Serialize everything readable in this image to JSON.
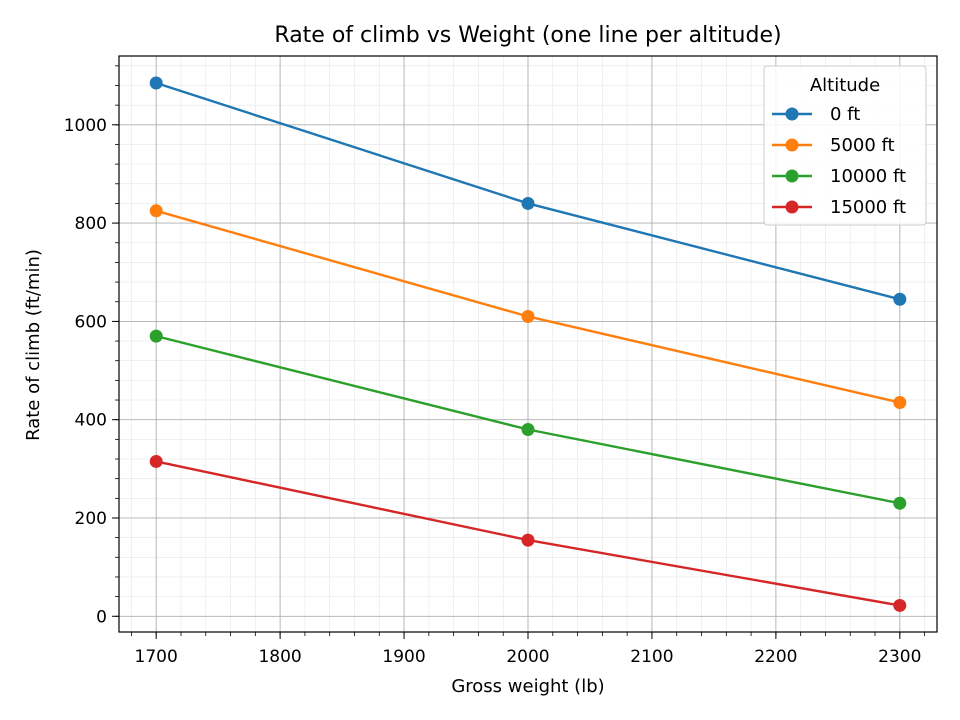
{
  "chart_data": {
    "type": "line",
    "title": "Rate of climb vs Weight (one line per altitude)",
    "xlabel": "Gross weight (lb)",
    "ylabel": "Rate of climb (ft/min)",
    "x": [
      1700,
      2000,
      2300
    ],
    "xlim": [
      1670,
      2330
    ],
    "ylim": [
      -32,
      1140
    ],
    "xticks": [
      1700,
      1800,
      1900,
      2000,
      2100,
      2200,
      2300
    ],
    "yticks": [
      0,
      200,
      400,
      600,
      800,
      1000
    ],
    "x_minor_step": 20,
    "y_minor_step": 40,
    "grid": true,
    "legend": {
      "title": "Altitude",
      "position": "top-right"
    },
    "series": [
      {
        "name": "0 ft",
        "color": "#1f77b4",
        "values": [
          1085,
          840,
          645
        ]
      },
      {
        "name": "5000 ft",
        "color": "#ff7f0e",
        "values": [
          825,
          610,
          435
        ]
      },
      {
        "name": "10000 ft",
        "color": "#2ca02c",
        "values": [
          570,
          380,
          230
        ]
      },
      {
        "name": "15000 ft",
        "color": "#d62728",
        "values": [
          315,
          155,
          22
        ]
      }
    ]
  }
}
